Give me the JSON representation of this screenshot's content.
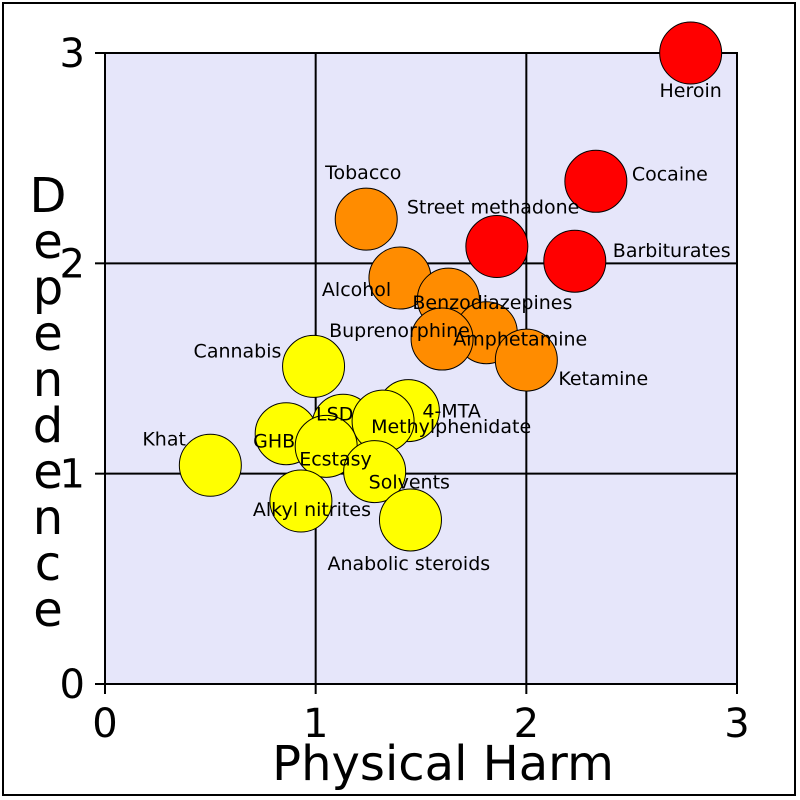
{
  "chart_data": {
    "type": "scatter",
    "xlabel": "Physical Harm",
    "ylabel": "Dependence",
    "xlim": [
      0,
      3
    ],
    "ylim": [
      0,
      3
    ],
    "xticks": [
      "0",
      "1",
      "2",
      "3"
    ],
    "yticks": [
      "0",
      "1",
      "2",
      "3"
    ],
    "grid": true,
    "plot_background": "#e6e6fa",
    "colors": {
      "high": "#ff0000",
      "medium": "#ff8c00",
      "low": "#ffff00"
    },
    "points": [
      {
        "name": "Heroin",
        "x": 2.78,
        "y": 3.0,
        "color": "#ff0000"
      },
      {
        "name": "Cocaine",
        "x": 2.33,
        "y": 2.39,
        "color": "#ff0000"
      },
      {
        "name": "Barbiturates",
        "x": 2.23,
        "y": 2.01,
        "color": "#ff0000"
      },
      {
        "name": "Street methadone",
        "x": 1.86,
        "y": 2.08,
        "color": "#ff0000"
      },
      {
        "name": "Tobacco",
        "x": 1.24,
        "y": 2.21,
        "color": "#ff8c00"
      },
      {
        "name": "Alcohol",
        "x": 1.4,
        "y": 1.93,
        "color": "#ff8c00"
      },
      {
        "name": "Benzodiazepines",
        "x": 1.63,
        "y": 1.83,
        "color": "#ff8c00"
      },
      {
        "name": "Amphetamine",
        "x": 1.81,
        "y": 1.67,
        "color": "#ff8c00"
      },
      {
        "name": "Buprenorphine",
        "x": 1.6,
        "y": 1.64,
        "color": "#ff8c00"
      },
      {
        "name": "Ketamine",
        "x": 2.0,
        "y": 1.54,
        "color": "#ff8c00"
      },
      {
        "name": "Cannabis",
        "x": 0.99,
        "y": 1.51,
        "color": "#ffff00"
      },
      {
        "name": "4-MTA",
        "x": 1.44,
        "y": 1.3,
        "color": "#ffff00"
      },
      {
        "name": "LSD",
        "x": 1.13,
        "y": 1.23,
        "color": "#ffff00"
      },
      {
        "name": "Methylphenidate",
        "x": 1.32,
        "y": 1.25,
        "color": "#ffff00"
      },
      {
        "name": "GHB",
        "x": 0.86,
        "y": 1.19,
        "color": "#ffff00"
      },
      {
        "name": "Ecstasy",
        "x": 1.05,
        "y": 1.13,
        "color": "#ffff00"
      },
      {
        "name": "Khat",
        "x": 0.5,
        "y": 1.04,
        "color": "#ffff00"
      },
      {
        "name": "Solvents",
        "x": 1.28,
        "y": 1.01,
        "color": "#ffff00"
      },
      {
        "name": "Alkyl nitrites",
        "x": 0.93,
        "y": 0.87,
        "color": "#ffff00"
      },
      {
        "name": "Anabolic steroids",
        "x": 1.45,
        "y": 0.78,
        "color": "#ffff00"
      }
    ]
  }
}
